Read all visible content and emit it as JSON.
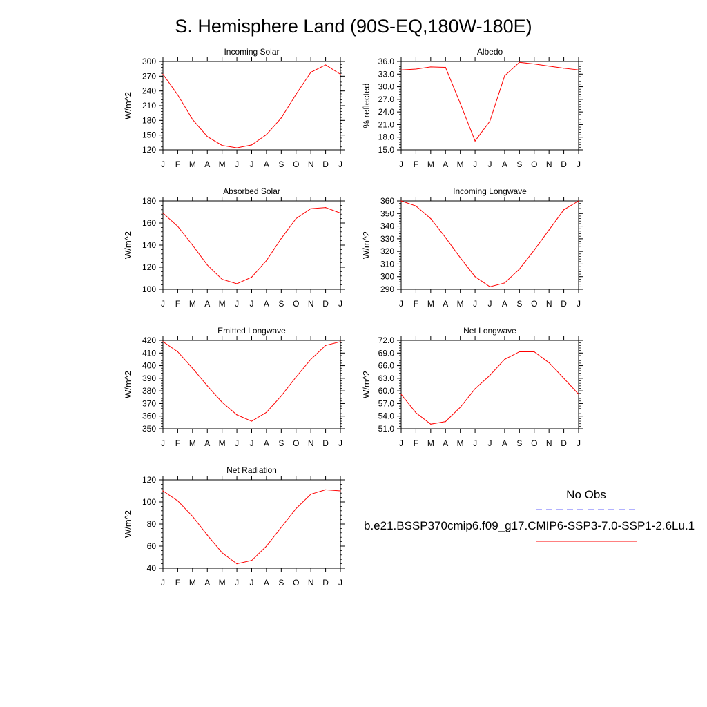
{
  "figure": {
    "title": "S. Hemisphere Land (90S-EQ,180W-180E)"
  },
  "legend": {
    "obs_label": "No Obs",
    "obs_color": "#6666ff",
    "model_label": "b.e21.BSSP370cmip6.f09_g17.CMIP6-SSP3-7.0-SSP1-2.6Lu.1",
    "model_color": "#ff0000"
  },
  "chart_data": [
    {
      "type": "line",
      "title": "Incoming Solar",
      "ylabel": "W/m^2",
      "categories": [
        "J",
        "F",
        "M",
        "A",
        "M",
        "J",
        "J",
        "A",
        "S",
        "O",
        "N",
        "D",
        "J"
      ],
      "ylim": [
        120,
        300
      ],
      "yticks": [
        120,
        150,
        180,
        210,
        240,
        270,
        300
      ],
      "tick_decimals": 0,
      "series": [
        {
          "color": "#ff0000",
          "values": [
            274,
            232,
            182,
            147,
            129,
            124,
            130,
            151,
            185,
            233,
            278,
            293,
            274
          ]
        }
      ]
    },
    {
      "type": "line",
      "title": "Albedo",
      "ylabel": "% reflected",
      "categories": [
        "J",
        "F",
        "M",
        "A",
        "M",
        "J",
        "J",
        "A",
        "S",
        "O",
        "N",
        "D",
        "J"
      ],
      "ylim": [
        15,
        36
      ],
      "yticks": [
        15,
        18,
        21,
        24,
        27,
        30,
        33,
        36
      ],
      "tick_decimals": 1,
      "series": [
        {
          "color": "#ff0000",
          "values": [
            34.0,
            34.2,
            34.7,
            34.6,
            26.0,
            17.1,
            21.8,
            32.6,
            35.8,
            35.4,
            34.9,
            34.4,
            34.0
          ]
        }
      ]
    },
    {
      "type": "line",
      "title": "Absorbed Solar",
      "ylabel": "W/m^2",
      "categories": [
        "J",
        "F",
        "M",
        "A",
        "M",
        "J",
        "J",
        "A",
        "S",
        "O",
        "N",
        "D",
        "J"
      ],
      "ylim": [
        100,
        180
      ],
      "yticks": [
        100,
        120,
        140,
        160,
        180
      ],
      "tick_decimals": 0,
      "series": [
        {
          "color": "#ff0000",
          "values": [
            169,
            157,
            140,
            122,
            109,
            105,
            111,
            126,
            146,
            164,
            173,
            174,
            169
          ]
        }
      ]
    },
    {
      "type": "line",
      "title": "Incoming Longwave",
      "ylabel": "W/m^2",
      "categories": [
        "J",
        "F",
        "M",
        "A",
        "M",
        "J",
        "J",
        "A",
        "S",
        "O",
        "N",
        "D",
        "J"
      ],
      "ylim": [
        290,
        360
      ],
      "yticks": [
        290,
        300,
        310,
        320,
        330,
        340,
        350,
        360
      ],
      "tick_decimals": 0,
      "series": [
        {
          "color": "#ff0000",
          "values": [
            360,
            356,
            346,
            331,
            315,
            300,
            292,
            295,
            306,
            321,
            337,
            353,
            360
          ]
        }
      ]
    },
    {
      "type": "line",
      "title": "Emitted Longwave",
      "ylabel": "W/m^2",
      "categories": [
        "J",
        "F",
        "M",
        "A",
        "M",
        "J",
        "J",
        "A",
        "S",
        "O",
        "N",
        "D",
        "J"
      ],
      "ylim": [
        350,
        420
      ],
      "yticks": [
        350,
        360,
        370,
        380,
        390,
        400,
        410,
        420
      ],
      "tick_decimals": 0,
      "series": [
        {
          "color": "#ff0000",
          "values": [
            419,
            411,
            398,
            384,
            371,
            361,
            356,
            363,
            376,
            391,
            405,
            416,
            419
          ]
        }
      ]
    },
    {
      "type": "line",
      "title": "Net Longwave",
      "ylabel": "W/m^2",
      "categories": [
        "J",
        "F",
        "M",
        "A",
        "M",
        "J",
        "J",
        "A",
        "S",
        "O",
        "N",
        "D",
        "J"
      ],
      "ylim": [
        51,
        72
      ],
      "yticks": [
        51,
        54,
        57,
        60,
        63,
        66,
        69,
        72
      ],
      "tick_decimals": 1,
      "series": [
        {
          "color": "#ff0000",
          "values": [
            59.2,
            54.8,
            52.1,
            52.7,
            56.1,
            60.5,
            63.7,
            67.5,
            69.3,
            69.3,
            66.7,
            63.0,
            59.2
          ]
        }
      ]
    },
    {
      "type": "line",
      "title": "Net Radiation",
      "ylabel": "W/m^2",
      "categories": [
        "J",
        "F",
        "M",
        "A",
        "M",
        "J",
        "J",
        "A",
        "S",
        "O",
        "N",
        "D",
        "J"
      ],
      "ylim": [
        40,
        120
      ],
      "yticks": [
        40,
        60,
        80,
        100,
        120
      ],
      "tick_decimals": 0,
      "series": [
        {
          "color": "#ff0000",
          "values": [
            110,
            101,
            87,
            70,
            54,
            44,
            47,
            60,
            77,
            94,
            107,
            111,
            110
          ]
        }
      ]
    }
  ]
}
